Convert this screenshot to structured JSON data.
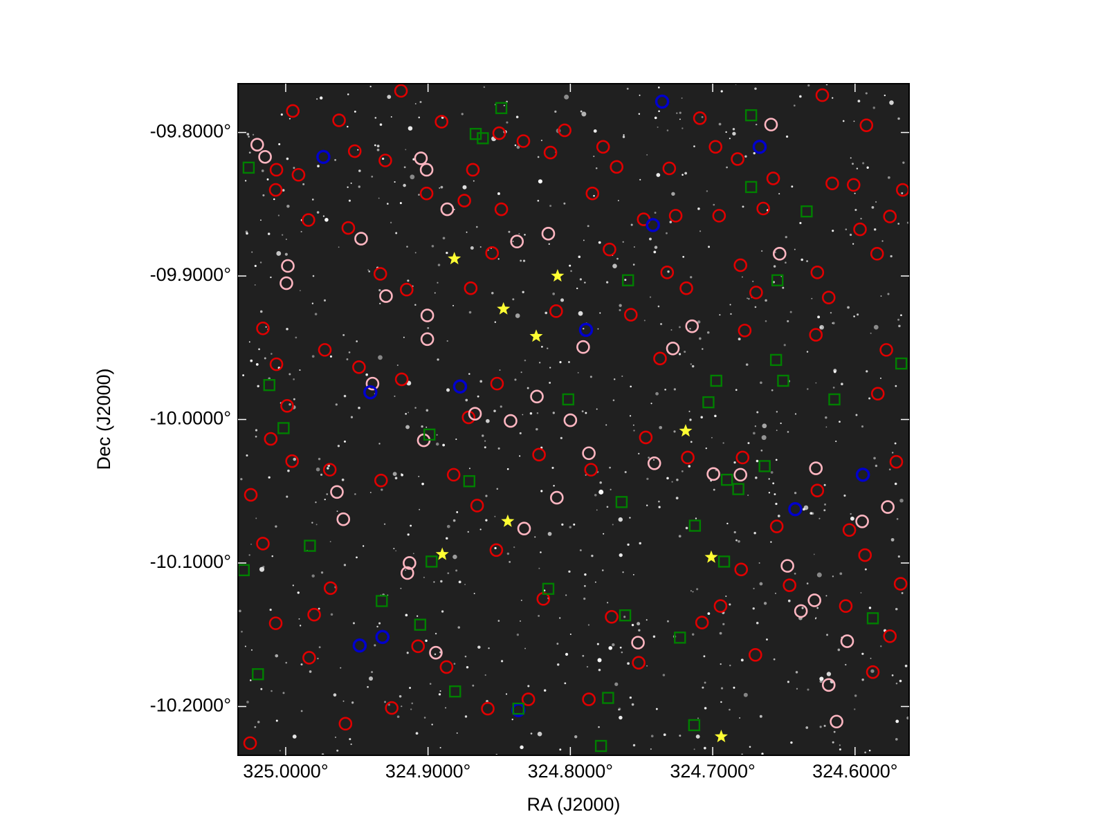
{
  "chart_data": {
    "type": "scatter",
    "xlabel": "RA (J2000)",
    "ylabel": "Dec (J2000)",
    "xlim": [
      325.0335,
      324.562
    ],
    "ylim": [
      -10.234,
      -9.766
    ],
    "xticks": [
      {
        "value": 325.0,
        "label": "325.0000°"
      },
      {
        "value": 324.9,
        "label": "324.9000°"
      },
      {
        "value": 324.8,
        "label": "324.8000°"
      },
      {
        "value": 324.7,
        "label": "324.7000°"
      },
      {
        "value": 324.6,
        "label": "324.6000°"
      }
    ],
    "yticks": [
      {
        "value": -9.8,
        "label": "-09.8000°"
      },
      {
        "value": -9.9,
        "label": "-09.9000°"
      },
      {
        "value": -10.0,
        "label": "-10.0000°"
      },
      {
        "value": -10.1,
        "label": "-10.1000°"
      },
      {
        "value": -10.2,
        "label": "-10.2000°"
      }
    ],
    "background": "#202020",
    "series": [
      {
        "color": "#e00000",
        "marker": "circle",
        "x": [
          324.995,
          324.9625,
          324.919,
          324.8905,
          324.85,
          324.833,
          324.804,
          324.777,
          324.709,
          324.698,
          324.623,
          324.592,
          325.0065,
          324.991,
          324.9515,
          324.93,
          324.8685,
          324.814,
          324.7675,
          324.7305,
          324.6825,
          324.6575,
          324.616,
          324.601,
          325.007,
          324.984,
          324.956,
          324.901,
          324.8745,
          324.8485,
          324.7845,
          324.7485,
          324.726,
          324.6955,
          324.6645,
          324.5755,
          324.5665,
          324.5965,
          324.5845,
          324.6265,
          324.6185,
          324.6805,
          324.6695,
          324.732,
          324.7725,
          324.855,
          324.87,
          324.915,
          324.9335,
          324.9725,
          325.016,
          325.0065,
          324.999,
          324.9485,
          324.9185,
          324.8715,
          324.8515,
          324.81,
          324.7575,
          324.7185,
          324.737,
          324.6775,
          324.6275,
          324.578,
          324.584,
          324.571,
          324.604,
          324.6265,
          324.679,
          324.7175,
          324.747,
          324.7855,
          324.822,
          324.8655,
          324.882,
          324.933,
          324.969,
          324.9955,
          325.0105,
          325.0245,
          325.016,
          325.007,
          324.98,
          324.9685,
          324.907,
          324.887,
          324.858,
          324.8295,
          324.787,
          324.752,
          324.7075,
          324.67,
          324.646,
          324.6065,
          324.5755,
          324.568,
          324.655,
          324.6945,
          324.771,
          324.819,
          324.852,
          324.958,
          324.9835,
          325.025,
          324.9255,
          324.5875,
          324.593,
          324.68
        ],
        "y": [
          -9.785,
          -9.7915,
          -9.771,
          -9.7925,
          -9.8005,
          -9.806,
          -9.7985,
          -9.81,
          -9.79,
          -9.81,
          -9.774,
          -9.795,
          -9.826,
          -9.8295,
          -9.813,
          -9.8195,
          -9.826,
          -9.814,
          -9.824,
          -9.825,
          -9.8185,
          -9.832,
          -9.8355,
          -9.8365,
          -9.84,
          -9.861,
          -9.8665,
          -9.8425,
          -9.8475,
          -9.8535,
          -9.8425,
          -9.8605,
          -9.858,
          -9.858,
          -9.853,
          -9.8585,
          -9.84,
          -9.8675,
          -9.8845,
          -9.8975,
          -9.915,
          -9.8925,
          -9.9115,
          -9.8975,
          -9.8815,
          -9.884,
          -9.9085,
          -9.9095,
          -9.8985,
          -9.9515,
          -9.9365,
          -9.9615,
          -9.9905,
          -9.9635,
          -9.972,
          -9.9985,
          -9.975,
          -9.9245,
          -9.927,
          -9.9085,
          -9.9575,
          -9.938,
          -9.941,
          -9.9515,
          -9.982,
          -10.0295,
          -10.077,
          -10.0495,
          -10.0265,
          -10.0265,
          -10.0125,
          -10.035,
          -10.0245,
          -10.06,
          -10.0385,
          -10.0425,
          -10.035,
          -10.029,
          -10.0135,
          -10.0525,
          -10.0865,
          -10.142,
          -10.136,
          -10.1175,
          -10.158,
          -10.1725,
          -10.2015,
          -10.195,
          -10.195,
          -10.1695,
          -10.1415,
          -10.164,
          -10.1155,
          -10.13,
          -10.151,
          -10.1145,
          -10.0745,
          -10.13,
          -10.1375,
          -10.125,
          -10.091,
          -10.212,
          -10.166,
          -10.2255,
          -10.201,
          -10.176,
          -10.0945,
          -10.1045
        ]
      },
      {
        "color": "#ffb6c1",
        "marker": "circle",
        "x": [
          325.02,
          325.0145,
          324.905,
          324.901,
          324.9985,
          324.9995,
          324.8865,
          324.8375,
          324.947,
          324.8155,
          324.9295,
          324.9005,
          324.9005,
          324.791,
          324.939,
          324.8235,
          324.867,
          324.842,
          324.8,
          324.787,
          324.903,
          324.741,
          324.6995,
          324.6805,
          324.6275,
          324.964,
          324.9595,
          324.9145,
          324.913,
          324.8325,
          324.8095,
          324.577,
          324.6285,
          324.638,
          324.6185,
          324.613,
          324.7525,
          324.8945,
          324.595,
          324.659,
          324.653,
          324.728,
          324.7145,
          324.6055,
          324.6475
        ],
        "y": [
          -9.8085,
          -9.817,
          -9.818,
          -9.826,
          -9.893,
          -9.905,
          -9.8535,
          -9.876,
          -9.874,
          -9.8705,
          -9.914,
          -9.9275,
          -9.944,
          -9.9495,
          -9.975,
          -9.984,
          -9.996,
          -10.001,
          -10.0005,
          -10.0235,
          -10.0145,
          -10.0305,
          -10.038,
          -10.0385,
          -10.034,
          -10.0505,
          -10.0695,
          -10.107,
          -10.1,
          -10.076,
          -10.0545,
          -10.061,
          -10.126,
          -10.1335,
          -10.185,
          -10.2105,
          -10.1555,
          -10.1625,
          -10.071,
          -9.7945,
          -9.8845,
          -9.9505,
          -9.935,
          -10.1545,
          -10.102
        ]
      },
      {
        "color": "#0000cc",
        "marker": "circle",
        "x": [
          324.7355,
          324.9735,
          324.667,
          324.742,
          324.789,
          324.8775,
          324.9405,
          324.5945,
          324.642,
          324.948,
          324.932,
          324.8365
        ],
        "y": [
          -9.7785,
          -9.817,
          -9.81,
          -9.8645,
          -9.9375,
          -9.977,
          -9.981,
          -10.0385,
          -10.0625,
          -10.1575,
          -10.1515,
          -10.2025
        ]
      },
      {
        "color": "#008000",
        "marker": "square",
        "x": [
          325.026,
          324.8485,
          324.8665,
          324.8615,
          324.673,
          324.673,
          324.634,
          324.7595,
          324.6545,
          324.6555,
          324.6505,
          324.6975,
          324.703,
          324.8015,
          325.0115,
          325.0015,
          324.899,
          324.6635,
          324.69,
          324.682,
          324.871,
          324.764,
          324.7125,
          324.983,
          324.8975,
          324.692,
          324.8155,
          324.9325,
          324.9055,
          324.7615,
          324.723,
          324.5875,
          325.0195,
          324.881,
          324.7735,
          324.8365,
          324.713,
          324.7785,
          324.6145,
          324.5675,
          325.0295
        ],
        "y": [
          -9.8245,
          -9.783,
          -9.801,
          -9.804,
          -9.788,
          -9.838,
          -9.855,
          -9.903,
          -9.903,
          -9.9585,
          -9.973,
          -9.973,
          -9.988,
          -9.986,
          -9.976,
          -10.006,
          -10.0105,
          -10.0325,
          -10.042,
          -10.0485,
          -10.043,
          -10.0575,
          -10.074,
          -10.088,
          -10.099,
          -10.099,
          -10.118,
          -10.1265,
          -10.143,
          -10.1365,
          -10.152,
          -10.1385,
          -10.1775,
          -10.1895,
          -10.194,
          -10.2015,
          -10.213,
          -10.2275,
          -9.986,
          -9.961,
          -10.105
        ]
      },
      {
        "color": "#ffff33",
        "marker": "star",
        "x": [
          324.8815,
          324.809,
          324.847,
          324.824,
          324.719,
          324.844,
          324.89,
          324.701,
          324.694
        ],
        "y": [
          -9.888,
          -9.9,
          -9.923,
          -9.942,
          -10.008,
          -10.071,
          -10.094,
          -10.096,
          -10.221
        ]
      }
    ]
  }
}
